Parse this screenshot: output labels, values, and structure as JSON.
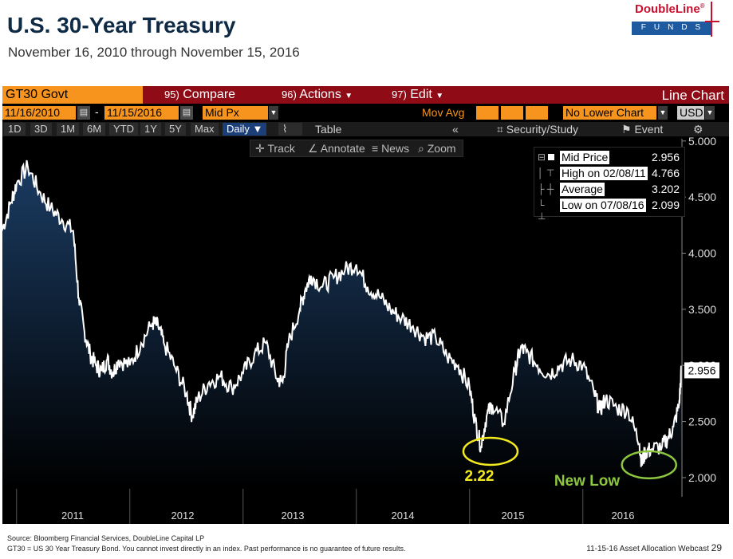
{
  "slide": {
    "title": "U.S. 30-Year Treasury",
    "subtitle": "November 16, 2010 through November 15, 2016"
  },
  "logo": {
    "name": "DoubleLine",
    "reg": "®",
    "funds": "FUNDS"
  },
  "terminal": {
    "ticker": "GT30 Govt",
    "menu": [
      {
        "num": "95)",
        "label": "Compare"
      },
      {
        "num": "96)",
        "label": "Actions"
      },
      {
        "num": "97)",
        "label": "Edit"
      }
    ],
    "chart_label": "Line Chart",
    "start_date": "11/16/2010",
    "end_date": "11/15/2016",
    "price_field": "Mid Px",
    "mov_avg": "Mov Avg",
    "lower_chart": "No Lower Chart",
    "currency": "USD",
    "periods": [
      "1D",
      "3D",
      "1M",
      "6M",
      "YTD",
      "1Y",
      "5Y",
      "Max"
    ],
    "frequency": "Daily ▼",
    "table": "Table",
    "collapse": "«",
    "security_study": "Security/Study",
    "event": "Event",
    "settings_icon": "gear-icon",
    "tools": [
      "Track",
      "Annotate",
      "News",
      "Zoom"
    ]
  },
  "legend": [
    {
      "label": "Mid Price",
      "value": "2.956"
    },
    {
      "label": "High on 02/08/11",
      "value": "4.766"
    },
    {
      "label": "Average",
      "value": "3.202"
    },
    {
      "label": "Low on 07/08/16",
      "value": "2.099"
    }
  ],
  "colors": {
    "line": "#ffffff",
    "area_top": "#1b3c63",
    "area_bottom": "#000000",
    "annotation_yellow": "#f2ea1e",
    "annotation_green": "#8dc63f",
    "bloomberg_orange": "#f7941d",
    "bloomberg_red": "#8f0c16"
  },
  "chart_data": {
    "type": "area",
    "title": "",
    "xlabel": "",
    "ylabel": "",
    "x_ticks": [
      "2011",
      "2012",
      "2013",
      "2014",
      "2015",
      "2016"
    ],
    "y_ticks": [
      "5.000",
      "4.500",
      "4.000",
      "3.500",
      "3.000",
      "2.500",
      "2.000"
    ],
    "ylim": [
      1.9,
      5.02
    ],
    "last_value_label": "2.956",
    "grid": false,
    "series": [
      {
        "name": "Mid Price",
        "x": [
          2010.87,
          2010.95,
          2011.0,
          2011.1,
          2011.2,
          2011.3,
          2011.4,
          2011.5,
          2011.55,
          2011.6,
          2011.65,
          2011.7,
          2011.75,
          2011.8,
          2011.85,
          2011.9,
          2012.0,
          2012.1,
          2012.2,
          2012.25,
          2012.3,
          2012.4,
          2012.5,
          2012.55,
          2012.6,
          2012.7,
          2012.8,
          2012.9,
          2013.0,
          2013.1,
          2013.2,
          2013.3,
          2013.35,
          2013.4,
          2013.5,
          2013.55,
          2013.6,
          2013.7,
          2013.8,
          2013.9,
          2014.0,
          2014.1,
          2014.2,
          2014.3,
          2014.4,
          2014.5,
          2014.6,
          2014.7,
          2014.8,
          2014.9,
          2015.0,
          2015.05,
          2015.1,
          2015.15,
          2015.2,
          2015.3,
          2015.4,
          2015.45,
          2015.5,
          2015.6,
          2015.7,
          2015.8,
          2015.9,
          2016.0,
          2016.1,
          2016.15,
          2016.2,
          2016.3,
          2016.4,
          2016.5,
          2016.52,
          2016.55,
          2016.6,
          2016.7,
          2016.75,
          2016.8,
          2016.85,
          2016.87
        ],
        "values": [
          4.2,
          4.45,
          4.62,
          4.77,
          4.55,
          4.4,
          4.3,
          4.2,
          3.6,
          3.3,
          3.1,
          3.0,
          2.95,
          3.05,
          2.93,
          3.05,
          3.0,
          3.2,
          3.38,
          3.35,
          3.2,
          2.98,
          2.75,
          2.55,
          2.7,
          2.85,
          2.9,
          2.8,
          2.93,
          3.1,
          3.2,
          2.88,
          2.85,
          3.2,
          3.5,
          3.68,
          3.8,
          3.7,
          3.78,
          3.85,
          3.9,
          3.7,
          3.62,
          3.5,
          3.42,
          3.35,
          3.25,
          3.25,
          3.08,
          3.0,
          2.8,
          2.5,
          2.28,
          2.55,
          2.65,
          2.48,
          2.95,
          3.15,
          3.12,
          3.0,
          2.92,
          3.0,
          3.05,
          3.0,
          2.75,
          2.6,
          2.7,
          2.62,
          2.6,
          2.3,
          2.12,
          2.23,
          2.25,
          2.28,
          2.35,
          2.45,
          2.65,
          2.96
        ]
      }
    ],
    "annotations": [
      {
        "label": "2.22",
        "x": 2015.1,
        "y": 2.22,
        "color": "yellow"
      },
      {
        "label": "New Low",
        "x": 2016.5,
        "y": 2.1,
        "color": "green"
      }
    ]
  },
  "footer": {
    "source": "Source: Bloomberg Financial Services, DoubleLine Capital LP",
    "note": "GT30 = US 30 Year Treasury Bond. You cannot invest directly in an index.  Past performance is no guarantee of future results.",
    "event": "11-15-16 Asset Allocation Webcast",
    "page": "29"
  }
}
